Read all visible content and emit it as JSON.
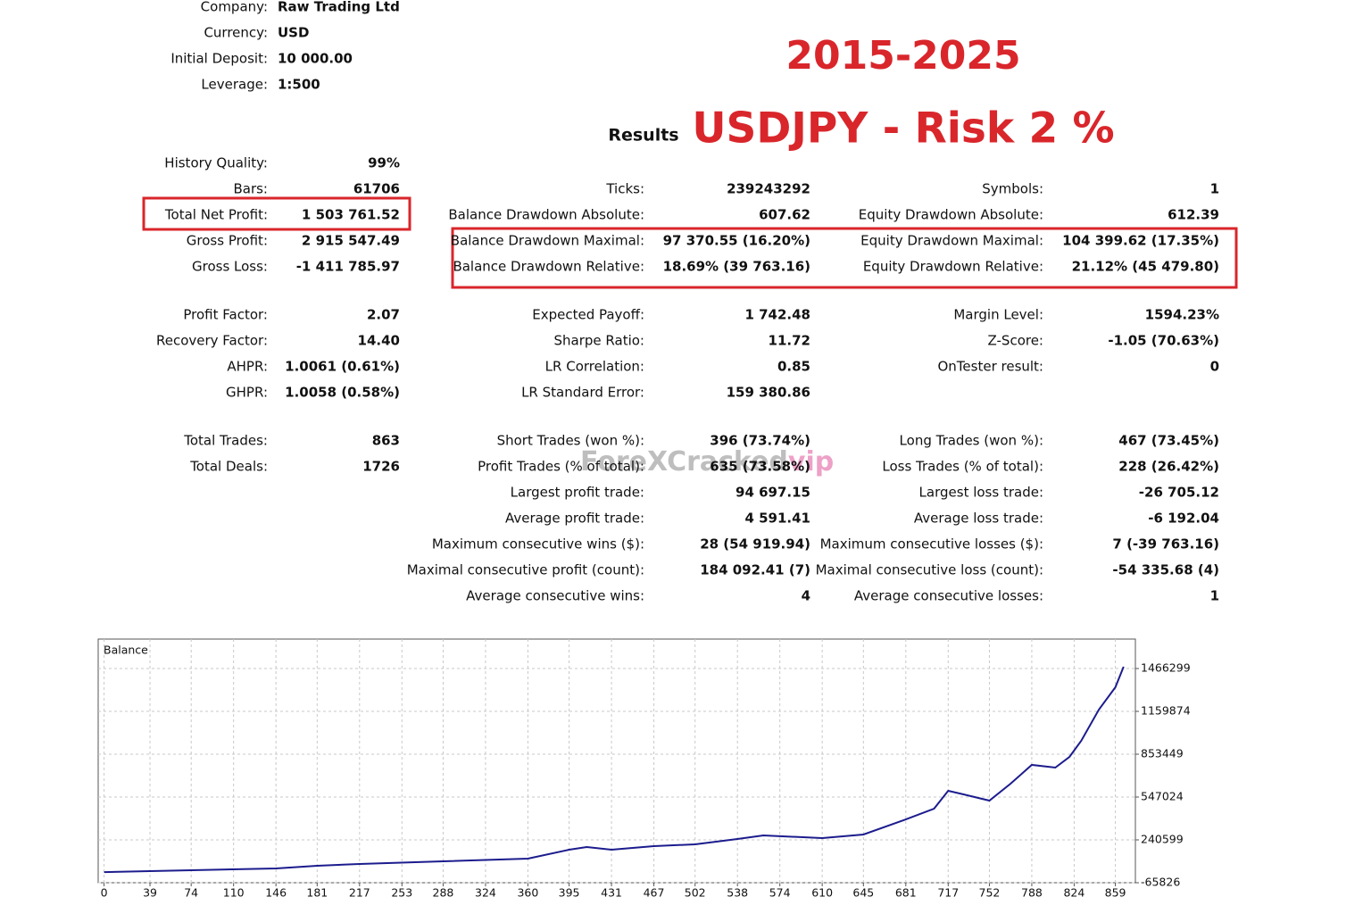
{
  "header": [
    {
      "label": "Company:",
      "value": "Raw Trading Ltd"
    },
    {
      "label": "Currency:",
      "value": "USD"
    },
    {
      "label": "Initial Deposit:",
      "value": "10 000.00"
    },
    {
      "label": "Leverage:",
      "value": "1:500"
    }
  ],
  "banner": {
    "period": "2015-2025",
    "setup": "USDJPY - Risk 2 %"
  },
  "results_title": "Results",
  "watermark": {
    "text": "ForeXCracked",
    "suffix": "vip"
  },
  "columns": [
    {
      "blocks": [
        [
          {
            "label": "History Quality:",
            "value": "99%"
          },
          {
            "label": "Bars:",
            "value": "61706"
          },
          {
            "label": "Total Net Profit:",
            "value": "1 503 761.52"
          },
          {
            "label": "Gross Profit:",
            "value": "2 915 547.49"
          },
          {
            "label": "Gross Loss:",
            "value": "-1 411 785.97"
          }
        ],
        [
          {
            "label": "Profit Factor:",
            "value": "2.07"
          },
          {
            "label": "Recovery Factor:",
            "value": "14.40"
          },
          {
            "label": "AHPR:",
            "value": "1.0061 (0.61%)"
          },
          {
            "label": "GHPR:",
            "value": "1.0058 (0.58%)"
          }
        ],
        [
          {
            "label": "Total Trades:",
            "value": "863"
          },
          {
            "label": "Total Deals:",
            "value": "1726"
          }
        ]
      ]
    },
    {
      "blocks": [
        [
          {
            "label": "Ticks:",
            "value": "239243292"
          },
          {
            "label": "Balance Drawdown Absolute:",
            "value": "607.62"
          },
          {
            "label": "Balance Drawdown Maximal:",
            "value": "97 370.55 (16.20%)"
          },
          {
            "label": "Balance Drawdown Relative:",
            "value": "18.69% (39 763.16)"
          }
        ],
        [
          {
            "label": "Expected Payoff:",
            "value": "1 742.48"
          },
          {
            "label": "Sharpe Ratio:",
            "value": "11.72"
          },
          {
            "label": "LR Correlation:",
            "value": "0.85"
          },
          {
            "label": "LR Standard Error:",
            "value": "159 380.86"
          }
        ],
        [
          {
            "label": "Short Trades (won %):",
            "value": "396 (73.74%)"
          },
          {
            "label": "Profit Trades (% of total):",
            "value": "635 (73.58%)"
          },
          {
            "label": "Largest profit trade:",
            "value": "94 697.15"
          },
          {
            "label": "Average profit trade:",
            "value": "4 591.41"
          },
          {
            "label": "Maximum consecutive wins ($):",
            "value": "28 (54 919.94)"
          },
          {
            "label": "Maximal consecutive profit (count):",
            "value": "184 092.41 (7)"
          },
          {
            "label": "Average consecutive wins:",
            "value": "4"
          }
        ]
      ]
    },
    {
      "blocks": [
        [
          {
            "label": "Symbols:",
            "value": "1"
          },
          {
            "label": "Equity Drawdown Absolute:",
            "value": "612.39"
          },
          {
            "label": "Equity Drawdown Maximal:",
            "value": "104 399.62 (17.35%)"
          },
          {
            "label": "Equity Drawdown Relative:",
            "value": "21.12% (45 479.80)"
          }
        ],
        [
          {
            "label": "Margin Level:",
            "value": "1594.23%"
          },
          {
            "label": "Z-Score:",
            "value": "-1.05 (70.63%)"
          },
          {
            "label": "OnTester result:",
            "value": "0"
          }
        ],
        [
          {
            "label": "Long Trades (won %):",
            "value": "467 (73.45%)"
          },
          {
            "label": "Loss Trades (% of total):",
            "value": "228 (26.42%)"
          },
          {
            "label": "Largest loss trade:",
            "value": "-26 705.12"
          },
          {
            "label": "Average loss trade:",
            "value": "-6 192.04"
          },
          {
            "label": "Maximum consecutive losses ($):",
            "value": "7 (-39 763.16)"
          },
          {
            "label": "Maximal consecutive loss (count):",
            "value": "-54 335.68 (4)"
          },
          {
            "label": "Average consecutive losses:",
            "value": "1"
          }
        ]
      ]
    }
  ],
  "chart_data": {
    "type": "line",
    "x": [
      0,
      74,
      146,
      181,
      217,
      288,
      360,
      395,
      410,
      431,
      467,
      502,
      538,
      560,
      610,
      645,
      681,
      705,
      717,
      730,
      752,
      770,
      788,
      808,
      820,
      830,
      845,
      859,
      866
    ],
    "series": [
      {
        "name": "Balance",
        "color": "#1c1c8e",
        "values": [
          10000,
          23500,
          36300,
          55500,
          68200,
          87400,
          106500,
          170400,
          189500,
          170400,
          196000,
          208700,
          247000,
          272500,
          253400,
          279000,
          387400,
          464000,
          591700,
          566100,
          521400,
          642700,
          777000,
          757700,
          834300,
          949200,
          1172700,
          1332300,
          1479000
        ]
      }
    ],
    "xlim": [
      -5,
      876
    ],
    "ylim": [
      -65826,
      1677000
    ],
    "xticks": [
      0,
      39,
      74,
      110,
      146,
      181,
      217,
      253,
      288,
      324,
      360,
      395,
      431,
      467,
      502,
      538,
      574,
      610,
      645,
      681,
      717,
      752,
      788,
      824,
      859
    ],
    "yticks": [
      -65826,
      240599,
      547024,
      853449,
      1159874,
      1466299
    ],
    "grid": true
  }
}
